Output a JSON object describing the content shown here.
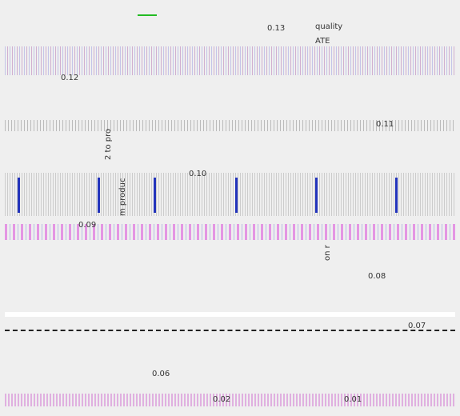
{
  "labels": [
    "0.13",
    "quality",
    "ATE",
    "0.12",
    "0.11",
    "2 to pro",
    "0.10",
    "m produc",
    "0.09",
    "on r",
    "0.08",
    "0.07",
    "0.06",
    "0.02",
    "0.01"
  ]
}
